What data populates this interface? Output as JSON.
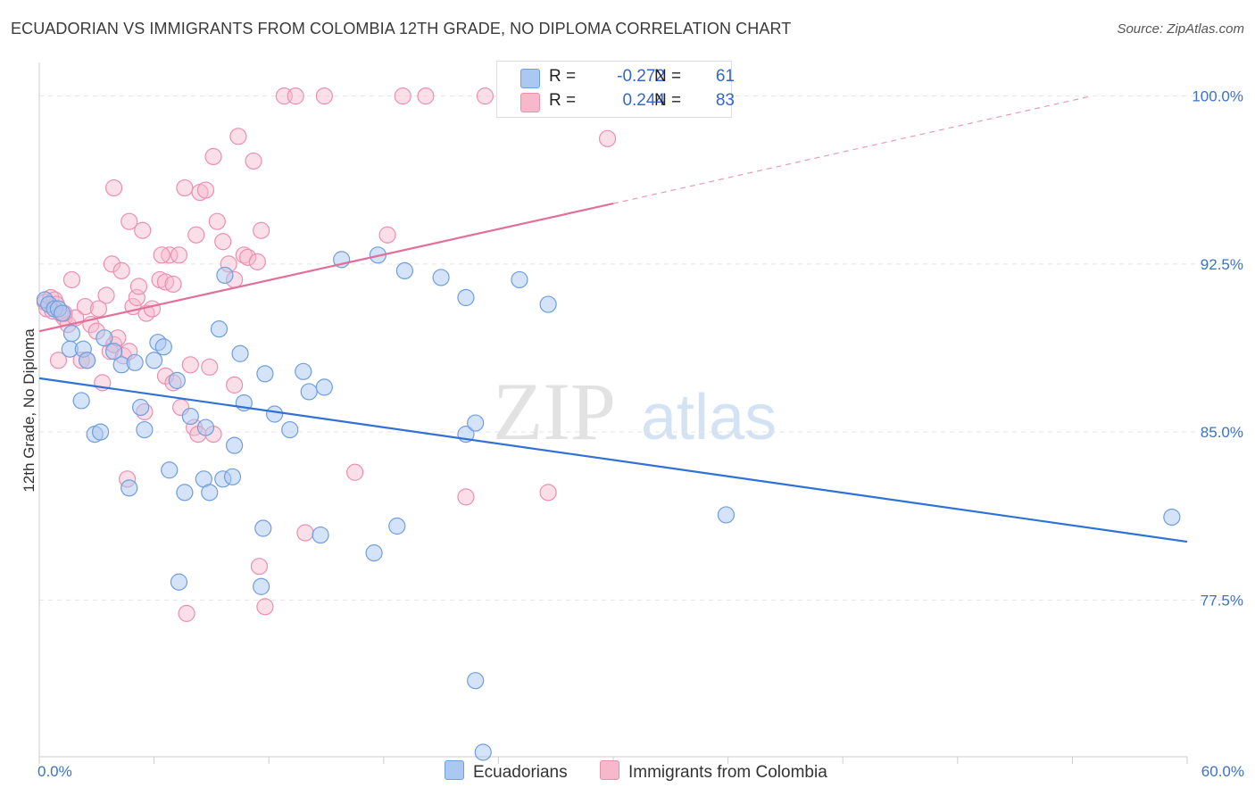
{
  "title": "ECUADORIAN VS IMMIGRANTS FROM COLOMBIA 12TH GRADE, NO DIPLOMA CORRELATION CHART",
  "source": "Source: ZipAtlas.com",
  "watermark": {
    "zip": "ZIP",
    "atlas": "atlas"
  },
  "legend": [
    {
      "r_label": "R =",
      "r_value": "-0.272",
      "n_label": "N =",
      "n_value": "61"
    },
    {
      "r_label": "R =",
      "r_value": "0.244",
      "n_label": "N =",
      "n_value": "83"
    }
  ],
  "colors": {
    "ecuadorians_fill": "#aac8f0",
    "ecuadorians_stroke": "#6f9ee0",
    "ecuadorians_line": "#2f72d4",
    "colombia_fill": "#f7b8cc",
    "colombia_stroke": "#ec8fae",
    "colombia_line": "#e0709a",
    "tick_label": "#3a72cc",
    "grid": "#e4e4e4"
  },
  "chart_data": {
    "type": "scatter",
    "title": "ECUADORIAN VS IMMIGRANTS FROM COLOMBIA 12TH GRADE, NO DIPLOMA CORRELATION CHART",
    "xlabel": "",
    "ylabel": "12th Grade, No Diploma",
    "xlim": [
      0,
      60
    ],
    "ylim": [
      70.5,
      101.5
    ],
    "x_tick_labels": [
      "0.0%",
      "60.0%"
    ],
    "y_ticks": [
      77.5,
      85.0,
      92.5,
      100.0
    ],
    "y_tick_labels": [
      "77.5%",
      "85.0%",
      "92.5%",
      "100.0%"
    ],
    "grid": true,
    "legend_position": "bottom",
    "series": [
      {
        "name": "Ecuadorians",
        "r": -0.272,
        "n": 61,
        "trend": {
          "x0": 0,
          "y0": 87.4,
          "x1": 60,
          "y1": 80.1
        },
        "points": [
          [
            0.3,
            90.9
          ],
          [
            0.5,
            90.7
          ],
          [
            0.8,
            90.5
          ],
          [
            1.0,
            90.5
          ],
          [
            1.2,
            90.3
          ],
          [
            1.7,
            89.4
          ],
          [
            1.6,
            88.7
          ],
          [
            2.3,
            88.7
          ],
          [
            2.5,
            88.2
          ],
          [
            2.2,
            86.4
          ],
          [
            3.4,
            89.2
          ],
          [
            3.9,
            88.6
          ],
          [
            4.3,
            88.0
          ],
          [
            5.0,
            88.1
          ],
          [
            6.0,
            88.2
          ],
          [
            6.2,
            89.0
          ],
          [
            6.5,
            88.8
          ],
          [
            7.2,
            87.3
          ],
          [
            5.3,
            86.1
          ],
          [
            5.5,
            85.1
          ],
          [
            2.9,
            84.9
          ],
          [
            3.2,
            85.0
          ],
          [
            7.9,
            85.7
          ],
          [
            8.7,
            85.2
          ],
          [
            9.4,
            89.6
          ],
          [
            9.7,
            92.0
          ],
          [
            10.5,
            88.5
          ],
          [
            10.2,
            84.4
          ],
          [
            10.7,
            86.3
          ],
          [
            11.8,
            87.6
          ],
          [
            12.3,
            85.8
          ],
          [
            13.1,
            85.1
          ],
          [
            13.8,
            87.7
          ],
          [
            14.1,
            86.8
          ],
          [
            14.9,
            87.0
          ],
          [
            15.8,
            92.7
          ],
          [
            17.7,
            92.9
          ],
          [
            19.1,
            92.2
          ],
          [
            21.0,
            91.9
          ],
          [
            22.3,
            91.0
          ],
          [
            25.1,
            91.8
          ],
          [
            26.6,
            90.7
          ],
          [
            22.3,
            84.9
          ],
          [
            22.8,
            85.4
          ],
          [
            6.8,
            83.3
          ],
          [
            4.7,
            82.5
          ],
          [
            7.6,
            82.3
          ],
          [
            8.6,
            82.9
          ],
          [
            8.9,
            82.3
          ],
          [
            9.6,
            82.9
          ],
          [
            10.1,
            83.0
          ],
          [
            11.7,
            80.7
          ],
          [
            14.7,
            80.4
          ],
          [
            18.7,
            80.8
          ],
          [
            17.5,
            79.6
          ],
          [
            7.3,
            78.3
          ],
          [
            11.6,
            78.1
          ],
          [
            22.8,
            73.9
          ],
          [
            23.2,
            70.7
          ],
          [
            35.9,
            81.3
          ],
          [
            59.2,
            81.2
          ]
        ]
      },
      {
        "name": "Immigrants from Colombia",
        "r": 0.244,
        "n": 83,
        "trend": {
          "x0": 0,
          "y0": 89.5,
          "x1": 30,
          "y1": 95.2,
          "dash_to_x": 55,
          "dash_to_y": 100.0
        },
        "points": [
          [
            0.3,
            90.8
          ],
          [
            0.4,
            90.5
          ],
          [
            0.6,
            91.0
          ],
          [
            0.8,
            90.9
          ],
          [
            0.9,
            90.7
          ],
          [
            1.1,
            90.3
          ],
          [
            1.3,
            90.1
          ],
          [
            1.5,
            89.8
          ],
          [
            1.9,
            90.1
          ],
          [
            2.2,
            88.2
          ],
          [
            2.5,
            88.2
          ],
          [
            2.7,
            89.8
          ],
          [
            3.0,
            89.5
          ],
          [
            3.3,
            87.2
          ],
          [
            3.5,
            91.1
          ],
          [
            3.7,
            88.6
          ],
          [
            3.9,
            88.9
          ],
          [
            4.1,
            89.2
          ],
          [
            4.4,
            88.4
          ],
          [
            4.7,
            88.6
          ],
          [
            4.9,
            90.6
          ],
          [
            5.1,
            91.0
          ],
          [
            5.6,
            90.3
          ],
          [
            5.9,
            90.5
          ],
          [
            6.3,
            91.8
          ],
          [
            6.6,
            91.7
          ],
          [
            6.8,
            92.9
          ],
          [
            7.0,
            91.6
          ],
          [
            7.3,
            92.9
          ],
          [
            7.6,
            95.9
          ],
          [
            7.9,
            88.0
          ],
          [
            8.2,
            93.8
          ],
          [
            8.4,
            95.7
          ],
          [
            8.7,
            95.8
          ],
          [
            8.9,
            87.9
          ],
          [
            9.3,
            94.4
          ],
          [
            9.6,
            93.5
          ],
          [
            9.9,
            92.5
          ],
          [
            10.2,
            91.8
          ],
          [
            10.4,
            98.2
          ],
          [
            10.7,
            92.9
          ],
          [
            10.9,
            92.8
          ],
          [
            11.2,
            97.1
          ],
          [
            11.6,
            94.0
          ],
          [
            3.9,
            95.9
          ],
          [
            4.7,
            94.4
          ],
          [
            5.4,
            94.0
          ],
          [
            6.4,
            92.9
          ],
          [
            3.8,
            92.5
          ],
          [
            4.3,
            92.2
          ],
          [
            1.7,
            91.8
          ],
          [
            5.2,
            91.5
          ],
          [
            9.1,
            97.3
          ],
          [
            12.8,
            100.0
          ],
          [
            13.4,
            100.0
          ],
          [
            14.9,
            100.0
          ],
          [
            19.0,
            100.0
          ],
          [
            20.2,
            100.0
          ],
          [
            23.3,
            100.0
          ],
          [
            29.7,
            98.1
          ],
          [
            6.6,
            87.5
          ],
          [
            7.0,
            87.2
          ],
          [
            10.2,
            87.1
          ],
          [
            8.1,
            85.2
          ],
          [
            8.3,
            84.9
          ],
          [
            4.6,
            82.9
          ],
          [
            16.5,
            83.2
          ],
          [
            22.3,
            82.1
          ],
          [
            26.6,
            82.3
          ],
          [
            13.9,
            80.5
          ],
          [
            11.5,
            79.0
          ],
          [
            11.8,
            77.2
          ],
          [
            7.7,
            76.9
          ],
          [
            18.2,
            93.8
          ],
          [
            0.7,
            90.4
          ],
          [
            1.3,
            90.3
          ],
          [
            2.4,
            90.6
          ],
          [
            3.1,
            90.5
          ],
          [
            1.0,
            88.2
          ],
          [
            5.5,
            85.9
          ],
          [
            7.4,
            86.1
          ],
          [
            9.1,
            84.9
          ],
          [
            11.4,
            92.6
          ]
        ]
      }
    ]
  },
  "bottom_legend": [
    {
      "label": "Ecuadorians"
    },
    {
      "label": "Immigrants from Colombia"
    }
  ]
}
